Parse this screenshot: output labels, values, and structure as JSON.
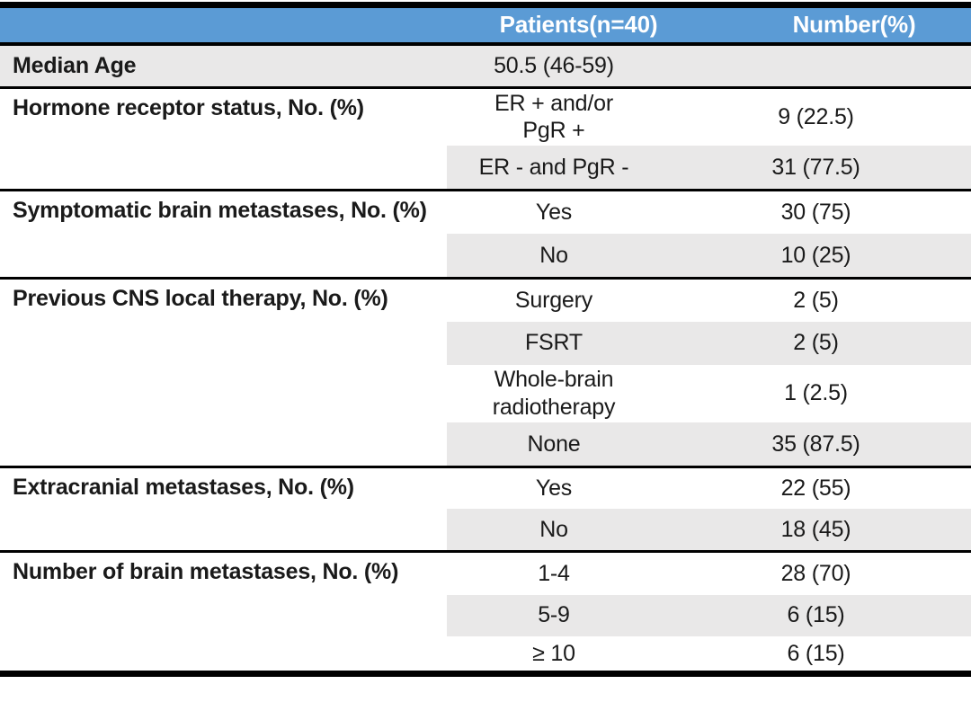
{
  "colors": {
    "header_bg": "#5b9bd5",
    "header_text": "#ffffff",
    "band_bg": "#e9e8e8",
    "border": "#000000",
    "text": "#1a1a1a"
  },
  "table": {
    "header": {
      "category": "",
      "patients": "Patients(n=40)",
      "number": "Number(%)"
    },
    "sections": [
      {
        "label": "Median Age",
        "rows": [
          {
            "value": "50.5 (46-59)",
            "number": ""
          }
        ]
      },
      {
        "label": "Hormone receptor status, No. (%)",
        "rows": [
          {
            "value": "ER + and/or\nPgR +",
            "number": "9 (22.5)"
          },
          {
            "value": "ER - and PgR -",
            "number": "31 (77.5)"
          }
        ]
      },
      {
        "label": "Symptomatic brain metastases, No. (%)",
        "rows": [
          {
            "value": "Yes",
            "number": "30 (75)"
          },
          {
            "value": "No",
            "number": "10 (25)"
          }
        ]
      },
      {
        "label": "Previous CNS local therapy, No. (%)",
        "rows": [
          {
            "value": "Surgery",
            "number": "2 (5)"
          },
          {
            "value": "FSRT",
            "number": "2 (5)"
          },
          {
            "value": "Whole-brain\nradiotherapy",
            "number": "1 (2.5)"
          },
          {
            "value": "None",
            "number": "35 (87.5)"
          }
        ]
      },
      {
        "label": "Extracranial metastases, No. (%)",
        "rows": [
          {
            "value": "Yes",
            "number": "22 (55)"
          },
          {
            "value": "No",
            "number": "18 (45)"
          }
        ]
      },
      {
        "label": "Number of brain metastases, No. (%)",
        "rows": [
          {
            "value": "1-4",
            "number": "28 (70)"
          },
          {
            "value": "5-9",
            "number": "6 (15)"
          },
          {
            "value": "≥ 10",
            "number": "6 (15)"
          }
        ]
      }
    ]
  }
}
